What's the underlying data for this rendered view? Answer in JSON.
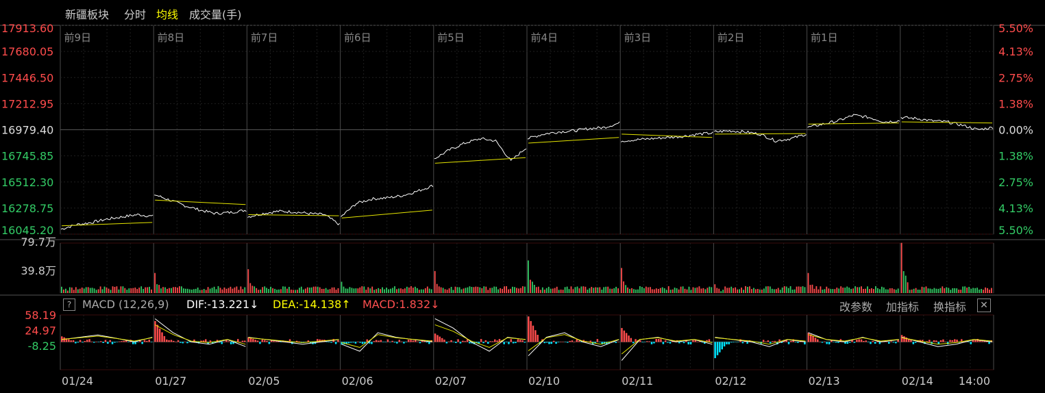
{
  "header": {
    "title": "新疆板块",
    "tabs": [
      "分时",
      "均线",
      "成交量(手)"
    ],
    "active_tab": "均线"
  },
  "macd_legend": {
    "help": "?",
    "name": "MACD (12,26,9)",
    "dif": "DIF:-13.221↓",
    "dea": "DEA:-14.138↑",
    "macd": "MACD:1.832↓",
    "buttons": [
      "改参数",
      "加指标",
      "换指标"
    ],
    "close": "✕"
  },
  "colors": {
    "background": "#000000",
    "grid": "#2a0000",
    "price_line": "#ffffff",
    "avg_line": "#e6e600",
    "up": "#ff4c4c",
    "down": "#33cc66",
    "macd_neg": "#00e5ff",
    "title": "#e6e6e6",
    "active_tab": "#ffff00"
  },
  "chart_data": [
    {
      "type": "line",
      "panel": "price",
      "y_left_ticks": [
        "17913.60",
        "17680.05",
        "17446.50",
        "17212.95",
        "16979.40",
        "16745.85",
        "16512.30",
        "16278.75",
        "16045.20"
      ],
      "y_right_ticks": [
        "5.50%",
        "4.13%",
        "2.75%",
        "1.38%",
        "0.00%",
        "1.38%",
        "2.75%",
        "4.13%",
        "5.50%"
      ],
      "ylim": [
        16045.2,
        17913.6
      ],
      "prev_close": 16979.4,
      "day_labels": [
        "前9日",
        "前8日",
        "前7日",
        "前6日",
        "前5日",
        "前4日",
        "前3日",
        "前2日",
        "前1日"
      ],
      "x": [
        "01/24",
        "01/27",
        "02/05",
        "02/06",
        "02/07",
        "02/10",
        "02/11",
        "02/12",
        "02/13",
        "02/14"
      ],
      "series": [
        {
          "role": "price",
          "days": [
            [
              16090,
              16130,
              16150,
              16180,
              16200,
              16220,
              16205
            ],
            [
              16400,
              16350,
              16300,
              16260,
              16230,
              16240,
              16260
            ],
            [
              16200,
              16230,
              16250,
              16245,
              16230,
              16220,
              16130
            ],
            [
              16200,
              16320,
              16360,
              16370,
              16390,
              16430,
              16480
            ],
            [
              16720,
              16800,
              16860,
              16900,
              16880,
              16700,
              16820
            ],
            [
              16900,
              16940,
              16960,
              16970,
              16990,
              17000,
              17040
            ],
            [
              16880,
              16890,
              16900,
              16910,
              16920,
              16940,
              16950
            ],
            [
              16960,
              16970,
              16960,
              16940,
              16880,
              16900,
              16940
            ],
            [
              17000,
              17030,
              17060,
              17110,
              17090,
              17050,
              17060
            ],
            [
              17090,
              17080,
              17060,
              17050,
              17020,
              16980,
              17000
            ]
          ]
        },
        {
          "role": "average",
          "days": [
            [
              16120,
              16150
            ],
            [
              16350,
              16310
            ],
            [
              16220,
              16210
            ],
            [
              16190,
              16260
            ],
            [
              16680,
              16730
            ],
            [
              16860,
              16910
            ],
            [
              16940,
              16910
            ],
            [
              16940,
              16945
            ],
            [
              17030,
              17040
            ],
            [
              17050,
              17040
            ]
          ]
        }
      ]
    },
    {
      "type": "bar",
      "panel": "volume",
      "unit": "万",
      "y_ticks": [
        "79.7万",
        "39.8万"
      ],
      "ylim": [
        0,
        79.7
      ],
      "open_spikes": [
        10,
        32,
        38,
        18,
        35,
        52,
        40,
        14,
        32,
        80
      ],
      "baseline": 5
    },
    {
      "type": "line",
      "panel": "macd",
      "y_ticks": [
        "58.19",
        "24.97",
        "-8.25"
      ],
      "zero": 0,
      "dif": -13.221,
      "dea": -14.138,
      "macd": 1.832,
      "open_bars": [
        12,
        45,
        10,
        -6,
        18,
        55,
        30,
        -35,
        20,
        15
      ],
      "day_lines": [
        [
          5,
          10,
          15,
          8,
          0,
          10
        ],
        [
          50,
          20,
          0,
          -5,
          5,
          -10
        ],
        [
          10,
          5,
          0,
          -5,
          0,
          5
        ],
        [
          -5,
          -20,
          20,
          10,
          5,
          0
        ],
        [
          50,
          30,
          0,
          -20,
          10,
          5
        ],
        [
          -30,
          10,
          20,
          0,
          -10,
          5
        ],
        [
          -40,
          5,
          10,
          0,
          5,
          -5
        ],
        [
          10,
          5,
          0,
          -10,
          5,
          0
        ],
        [
          20,
          5,
          0,
          10,
          0,
          5
        ],
        [
          10,
          0,
          -10,
          -5,
          5,
          0
        ]
      ]
    }
  ]
}
